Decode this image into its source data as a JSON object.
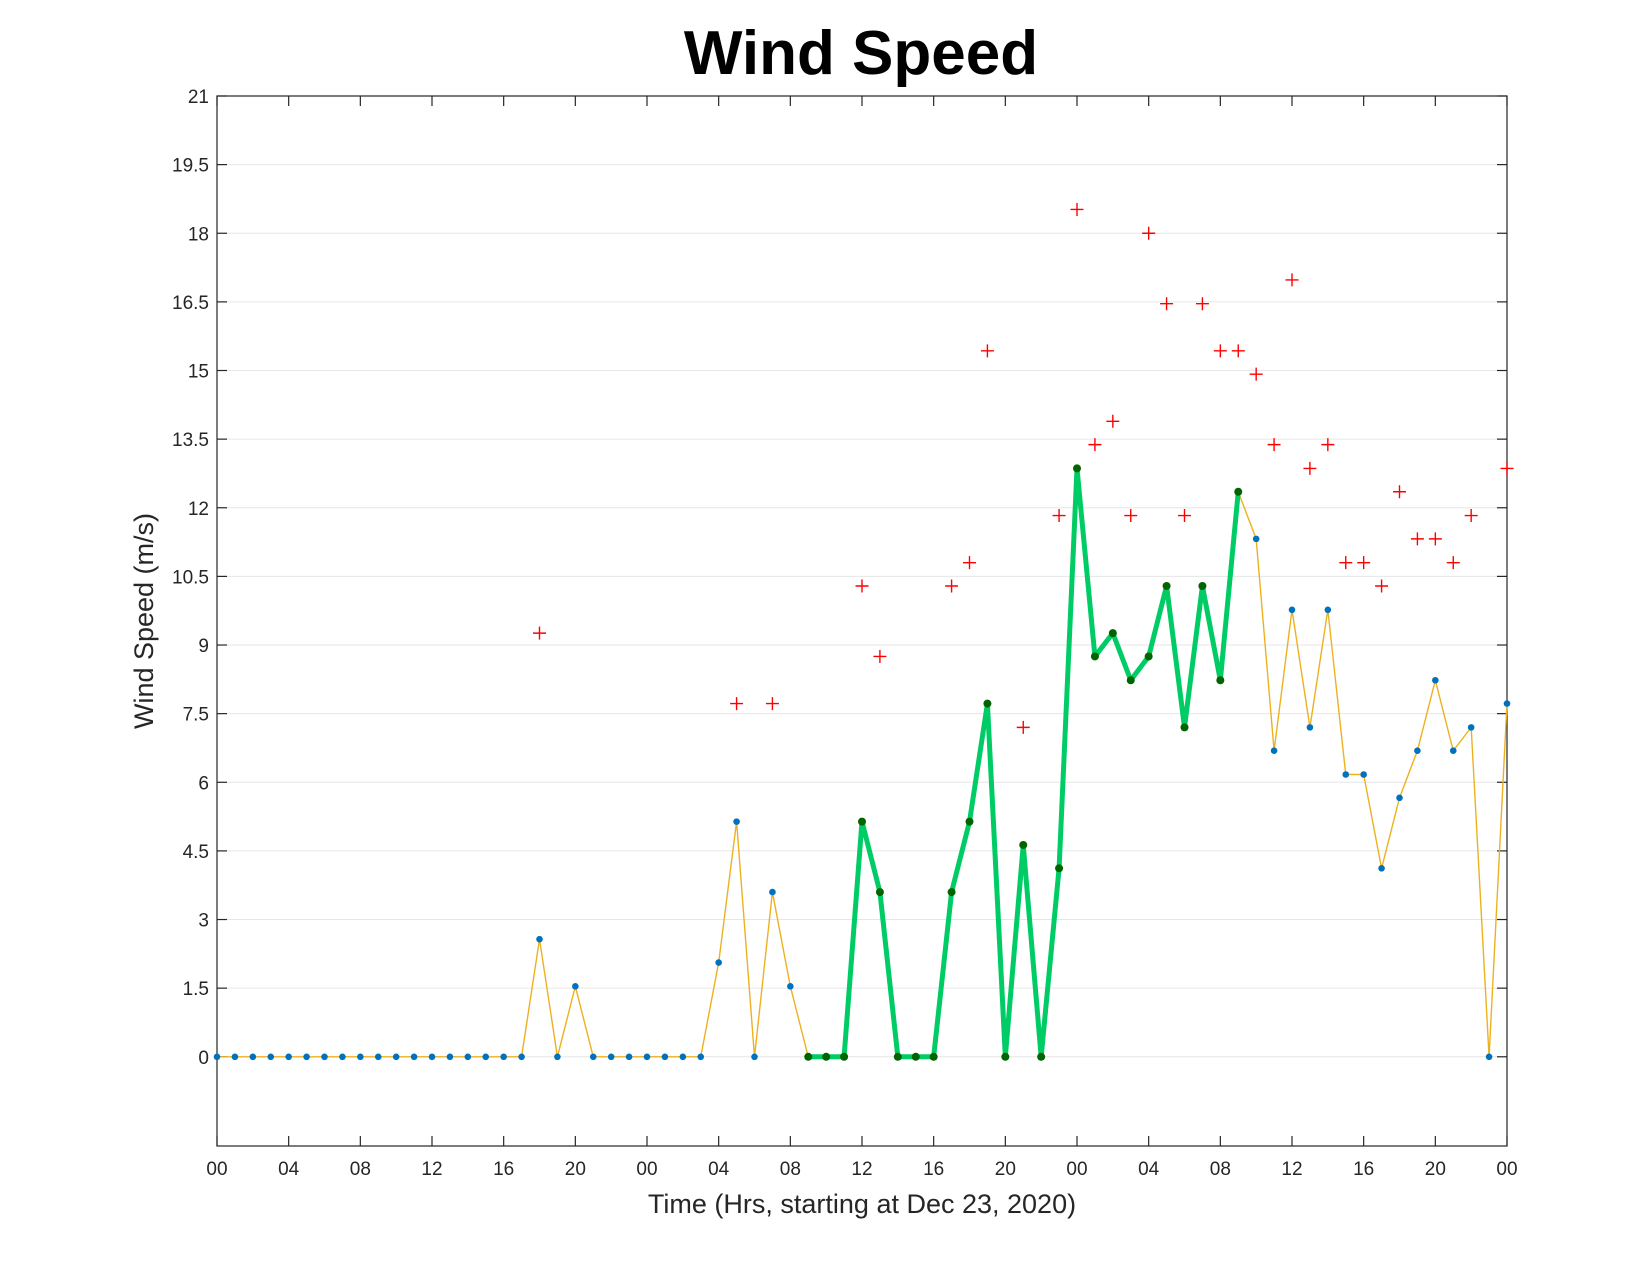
{
  "chart_data": {
    "type": "line",
    "title": "Wind Speed",
    "xlabel": "Time (Hrs, starting at Dec 23, 2020)",
    "ylabel": "Wind Speed (m/s)",
    "ylim": [
      -1.95,
      21
    ],
    "xlim": [
      0,
      72
    ],
    "yticks": [
      0,
      1.5,
      3,
      4.5,
      6,
      7.5,
      9,
      10.5,
      12,
      13.5,
      15,
      16.5,
      18,
      19.5,
      21
    ],
    "ytick_labels": [
      "0",
      "1.5",
      "3",
      "4.5",
      "6",
      "7.5",
      "9",
      "10.5",
      "12",
      "13.5",
      "15",
      "16.5",
      "18",
      "19.5",
      "21"
    ],
    "xticks": [
      0,
      4,
      8,
      12,
      16,
      20,
      24,
      28,
      32,
      36,
      40,
      44,
      48,
      52,
      56,
      60,
      64,
      68,
      72
    ],
    "xtick_labels": [
      "00",
      "04",
      "08",
      "12",
      "16",
      "20",
      "00",
      "04",
      "08",
      "12",
      "16",
      "20",
      "00",
      "04",
      "08",
      "12",
      "16",
      "20",
      "00"
    ],
    "grid": "horizontal",
    "x": [
      0,
      1,
      2,
      3,
      4,
      5,
      6,
      7,
      8,
      9,
      10,
      11,
      12,
      13,
      14,
      15,
      16,
      17,
      18,
      19,
      20,
      21,
      22,
      23,
      24,
      25,
      26,
      27,
      28,
      29,
      30,
      31,
      32,
      33,
      34,
      35,
      36,
      37,
      38,
      39,
      40,
      41,
      42,
      43,
      44,
      45,
      46,
      47,
      48,
      49,
      50,
      51,
      52,
      53,
      54,
      55,
      56,
      57,
      58,
      59,
      60,
      61,
      62,
      63,
      64,
      65,
      66,
      67,
      68,
      69,
      70,
      71,
      72
    ],
    "series": [
      {
        "role": "wind-speed",
        "style": "thin orange line with blue dots",
        "color": "#EDB120",
        "marker_color": "#0072BD",
        "values": [
          0,
          0,
          0,
          0,
          0,
          0,
          0,
          0,
          0,
          0,
          0,
          0,
          0,
          0,
          0,
          0,
          0,
          0,
          2.57,
          0,
          1.54,
          0,
          0,
          0,
          0,
          0,
          0,
          0,
          2.06,
          5.14,
          0,
          3.6,
          1.54,
          0,
          0,
          0,
          5.14,
          3.6,
          0,
          0,
          0,
          3.6,
          5.14,
          7.72,
          0,
          4.63,
          0,
          4.12,
          12.86,
          8.75,
          9.26,
          8.23,
          8.75,
          10.29,
          7.2,
          10.29,
          8.23,
          12.35,
          11.32,
          6.69,
          9.77,
          7.2,
          9.77,
          6.17,
          6.17,
          4.12,
          5.66,
          6.69,
          8.23,
          6.69,
          7.2,
          0,
          7.72
        ]
      },
      {
        "role": "highlighted-segment",
        "style": "thick green line with dark green dots",
        "color": "#00CC66",
        "marker_color": "#006400",
        "x": [
          33,
          34,
          35,
          36,
          37,
          38,
          39,
          40,
          41,
          42,
          43,
          44,
          45,
          46,
          47,
          48,
          49,
          50,
          51,
          52,
          53,
          54,
          55,
          56,
          57
        ],
        "values": [
          0,
          0,
          0,
          5.14,
          3.6,
          0,
          0,
          0,
          3.6,
          5.14,
          7.72,
          0,
          4.63,
          0,
          4.12,
          12.86,
          8.75,
          9.26,
          8.23,
          8.75,
          10.29,
          7.2,
          10.29,
          8.23,
          12.35
        ]
      },
      {
        "role": "gusts",
        "style": "red plus markers",
        "color": "#FF0000",
        "x": [
          18,
          29,
          31,
          36,
          37,
          41,
          42,
          43,
          45,
          47,
          48,
          49,
          50,
          51,
          52,
          53,
          54,
          55,
          56,
          57,
          58,
          59,
          60,
          61,
          62,
          63,
          64,
          65,
          66,
          67,
          68,
          69,
          70,
          72
        ],
        "values": [
          9.26,
          7.72,
          7.72,
          10.29,
          8.75,
          10.29,
          10.8,
          15.43,
          7.2,
          11.83,
          18.52,
          13.38,
          13.89,
          11.83,
          18.0,
          16.46,
          11.83,
          16.46,
          15.43,
          15.43,
          14.92,
          13.38,
          16.98,
          12.86,
          13.38,
          10.8,
          10.8,
          10.29,
          12.35,
          11.32,
          11.32,
          10.8,
          11.83,
          12.86
        ]
      }
    ]
  }
}
